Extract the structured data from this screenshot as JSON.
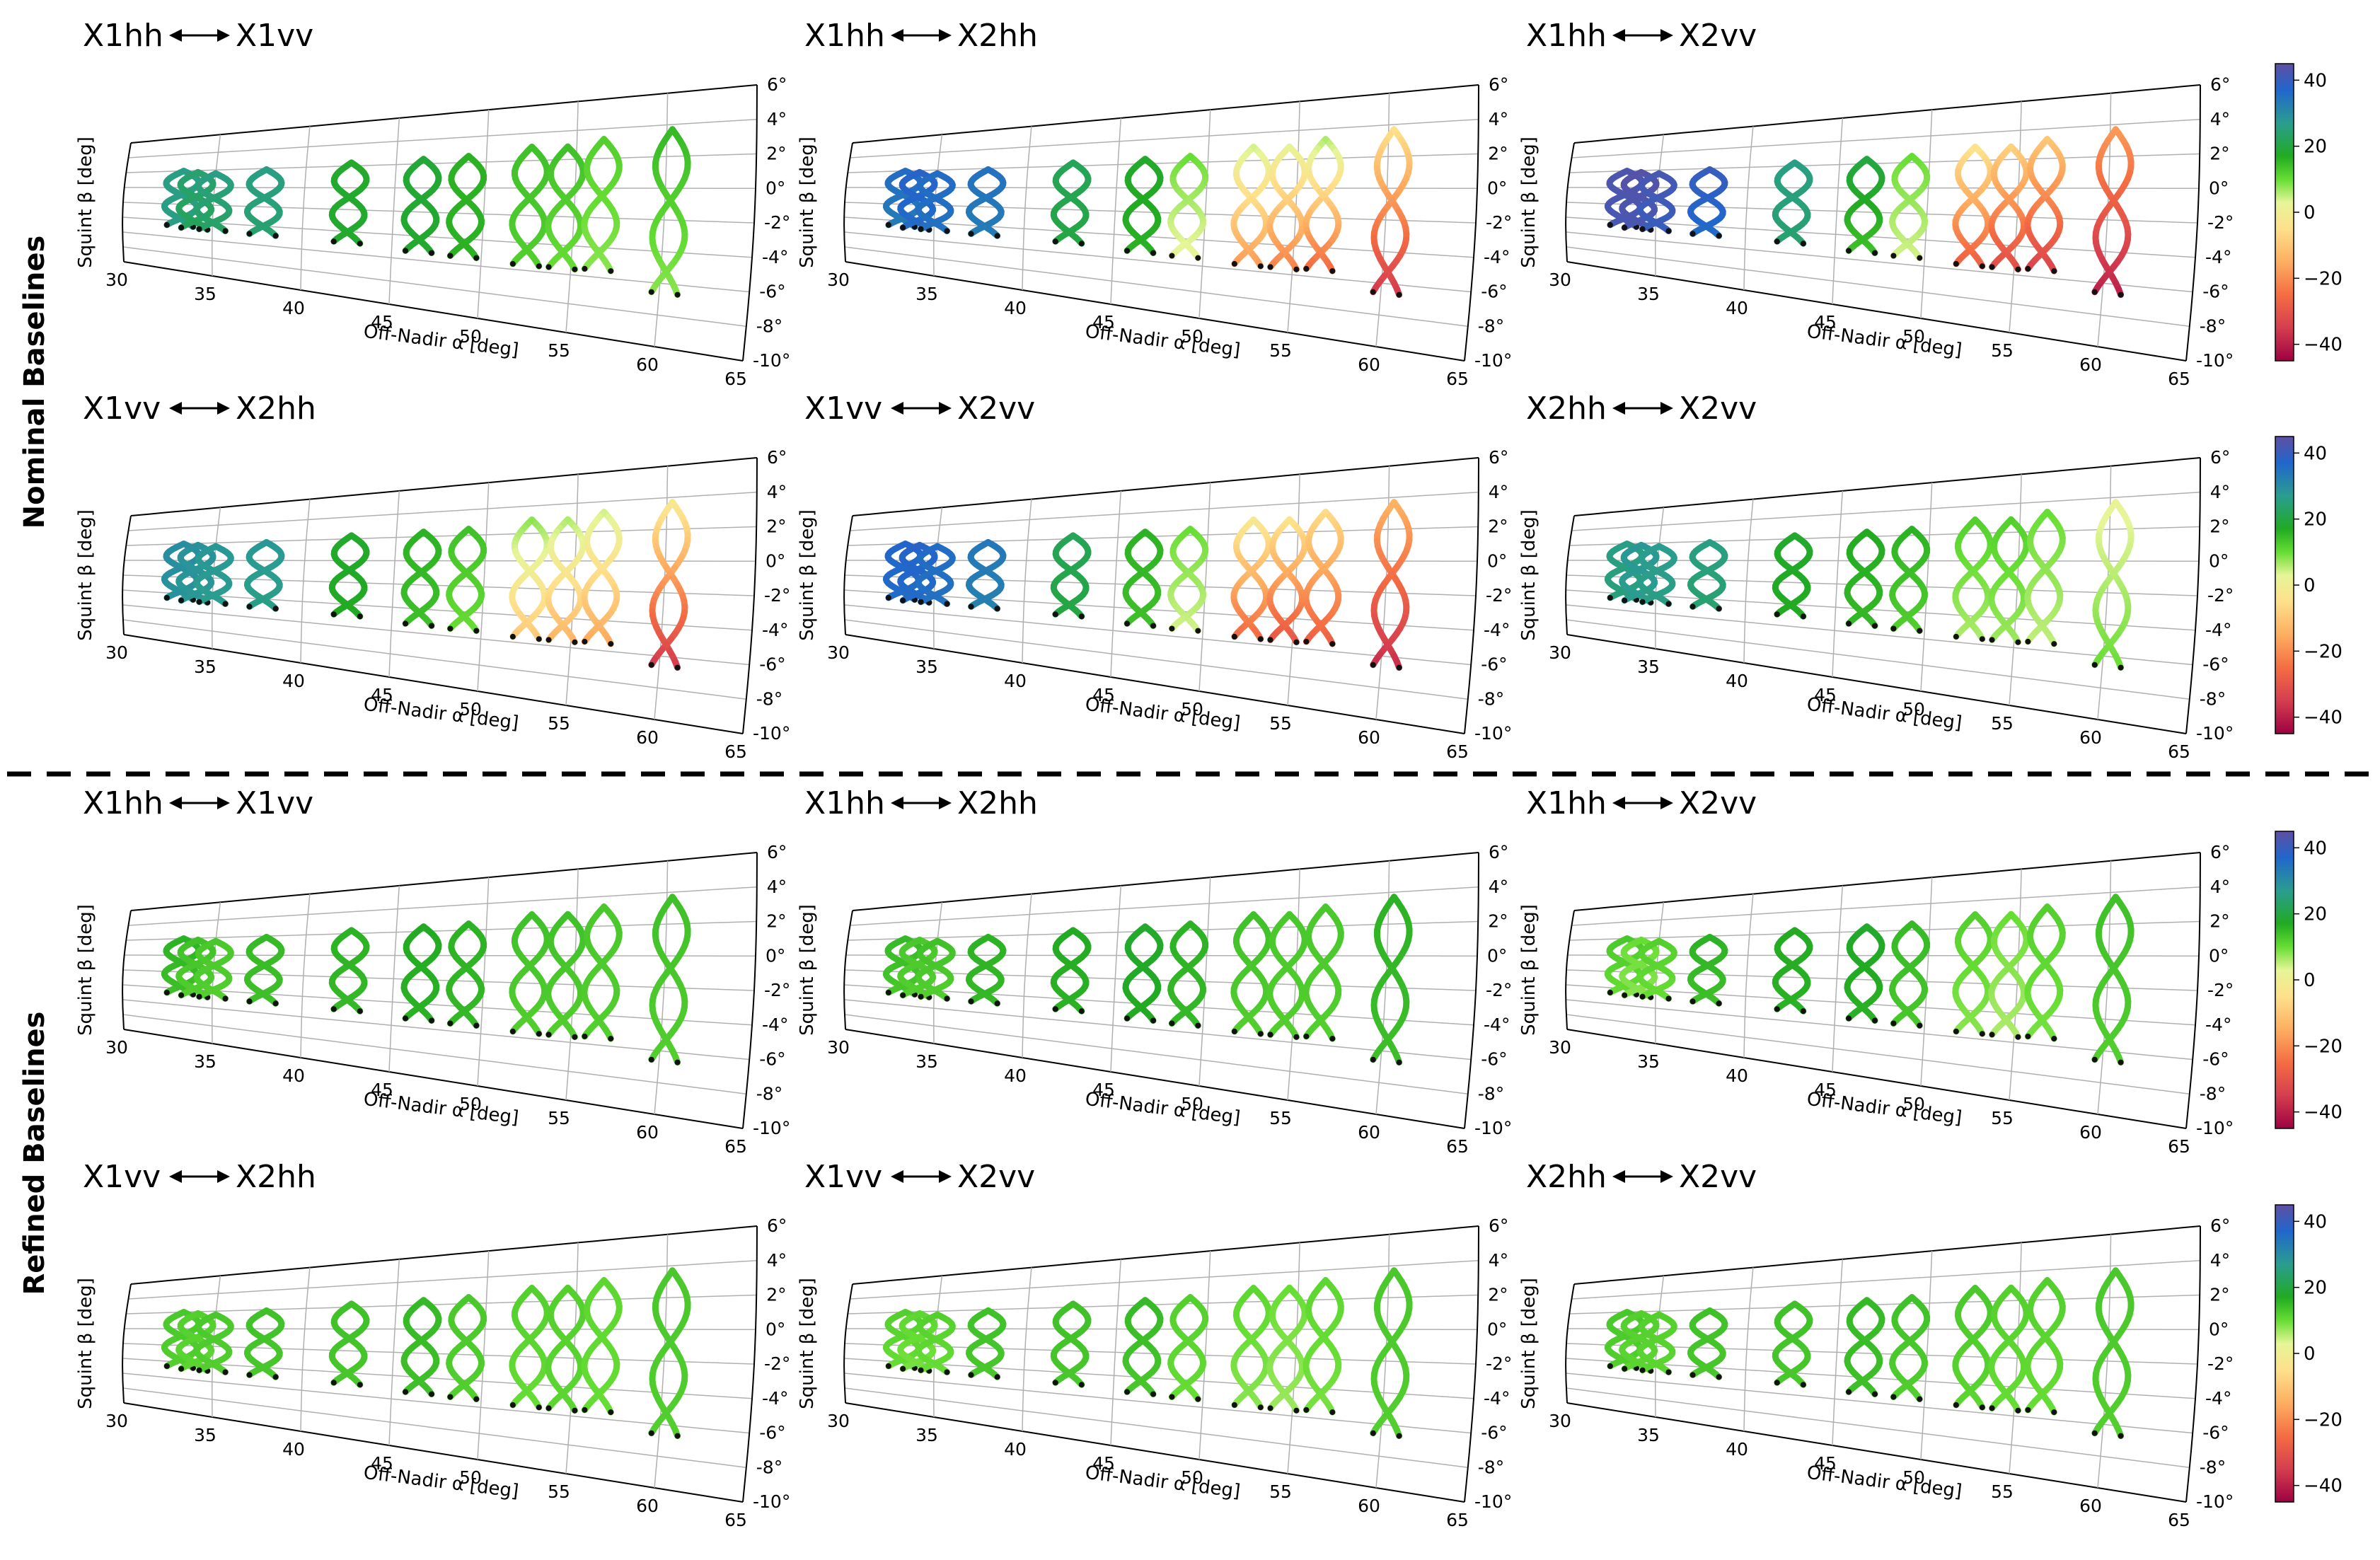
{
  "figure": {
    "row_labels": [
      "Nominal Baselines",
      "Refined Baselines"
    ],
    "divider": "dashed"
  },
  "chart_data": {
    "type": "line",
    "x_axis": {
      "label": "Off-Nadir α [deg]",
      "range": [
        30,
        65
      ],
      "ticks": [
        30,
        35,
        40,
        45,
        50,
        55,
        60,
        65
      ]
    },
    "y_axis": {
      "label": "Squint β [deg]",
      "range": [
        -10,
        6
      ],
      "ticks": [
        "6°",
        "4°",
        "2°",
        "0°",
        "-2°",
        "-4°",
        "-6°",
        "-8°",
        "-10°"
      ]
    },
    "colorbar": {
      "range": [
        -45,
        45
      ],
      "ticks": [
        40,
        20,
        0,
        -20,
        -40
      ],
      "colormap": [
        [
          -45,
          "#9e0142"
        ],
        [
          -35,
          "#d53e4f"
        ],
        [
          -25,
          "#f46d43"
        ],
        [
          -15,
          "#fdae61"
        ],
        [
          -5,
          "#fee08b"
        ],
        [
          3,
          "#e6f598"
        ],
        [
          10,
          "#66dd33"
        ],
        [
          17,
          "#22aa22"
        ],
        [
          27,
          "#2a9d8f"
        ],
        [
          37,
          "#2166cc"
        ],
        [
          45,
          "#5e4fa2"
        ]
      ]
    },
    "tracks": [
      {
        "alpha": 33.2,
        "top": 2.0,
        "bottom": -4.6
      },
      {
        "alpha": 34.0,
        "top": 1.8,
        "bottom": -4.8
      },
      {
        "alpha": 35.0,
        "top": 1.6,
        "bottom": -4.8
      },
      {
        "alpha": 37.8,
        "top": 1.9,
        "bottom": -4.9
      },
      {
        "alpha": 42.5,
        "top": 2.3,
        "bottom": -5.0
      },
      {
        "alpha": 46.5,
        "top": 2.4,
        "bottom": -5.3
      },
      {
        "alpha": 49.0,
        "top": 2.5,
        "bottom": -5.4
      },
      {
        "alpha": 52.5,
        "top": 3.0,
        "bottom": -5.6
      },
      {
        "alpha": 54.5,
        "top": 2.9,
        "bottom": -5.6
      },
      {
        "alpha": 56.5,
        "top": 3.3,
        "bottom": -5.5
      },
      {
        "alpha": 60.3,
        "top": 3.7,
        "bottom": -6.6
      }
    ],
    "panels": [
      {
        "row": 0,
        "title_left": "X1hh",
        "title_right": "X1vv",
        "colorbar": false,
        "track_values": [
          [
            26,
            26
          ],
          [
            24,
            22
          ],
          [
            26,
            23
          ],
          [
            26,
            24
          ],
          [
            18,
            18
          ],
          [
            19,
            18
          ],
          [
            16,
            16
          ],
          [
            14,
            12
          ],
          [
            14,
            10
          ],
          [
            12,
            8
          ],
          [
            15,
            8
          ]
        ]
      },
      {
        "row": 0,
        "title_left": "X1hh",
        "title_right": "X2hh",
        "colorbar": false,
        "track_values": [
          [
            36,
            33
          ],
          [
            38,
            36
          ],
          [
            36,
            35
          ],
          [
            35,
            33
          ],
          [
            22,
            20
          ],
          [
            18,
            16
          ],
          [
            10,
            2
          ],
          [
            4,
            -18
          ],
          [
            2,
            -22
          ],
          [
            6,
            -26
          ],
          [
            -5,
            -36
          ]
        ]
      },
      {
        "row": 0,
        "title_left": "X1hh",
        "title_right": "X2vv",
        "colorbar": true,
        "track_values": [
          [
            43,
            42
          ],
          [
            44,
            42
          ],
          [
            42,
            40
          ],
          [
            40,
            36
          ],
          [
            26,
            24
          ],
          [
            20,
            14
          ],
          [
            10,
            4
          ],
          [
            -4,
            -28
          ],
          [
            -8,
            -32
          ],
          [
            -10,
            -34
          ],
          [
            -18,
            -40
          ]
        ]
      },
      {
        "row": 0,
        "title_left": "X1vv",
        "title_right": "X2hh",
        "colorbar": false,
        "track_values": [
          [
            30,
            29
          ],
          [
            29,
            28
          ],
          [
            28,
            27
          ],
          [
            28,
            26
          ],
          [
            18,
            17
          ],
          [
            16,
            14
          ],
          [
            14,
            10
          ],
          [
            8,
            -10
          ],
          [
            6,
            -14
          ],
          [
            4,
            -16
          ],
          [
            -2,
            -36
          ]
        ]
      },
      {
        "row": 0,
        "title_left": "X1vv",
        "title_right": "X2vv",
        "colorbar": false,
        "track_values": [
          [
            37,
            36
          ],
          [
            38,
            36
          ],
          [
            36,
            35
          ],
          [
            34,
            32
          ],
          [
            22,
            20
          ],
          [
            16,
            14
          ],
          [
            10,
            4
          ],
          [
            -2,
            -26
          ],
          [
            -4,
            -30
          ],
          [
            -6,
            -28
          ],
          [
            -14,
            -38
          ]
        ]
      },
      {
        "row": 0,
        "title_left": "X2hh",
        "title_right": "X2vv",
        "colorbar": true,
        "track_values": [
          [
            26,
            25
          ],
          [
            28,
            27
          ],
          [
            27,
            26
          ],
          [
            26,
            24
          ],
          [
            18,
            17
          ],
          [
            17,
            15
          ],
          [
            16,
            12
          ],
          [
            12,
            6
          ],
          [
            12,
            7
          ],
          [
            10,
            5
          ],
          [
            2,
            10
          ]
        ]
      },
      {
        "row": 1,
        "title_left": "X1hh",
        "title_right": "X1vv",
        "colorbar": false,
        "track_values": [
          [
            16,
            14
          ],
          [
            14,
            12
          ],
          [
            13,
            12
          ],
          [
            15,
            14
          ],
          [
            16,
            15
          ],
          [
            17,
            16
          ],
          [
            16,
            15
          ],
          [
            14,
            12
          ],
          [
            14,
            12
          ],
          [
            13,
            12
          ],
          [
            14,
            12
          ]
        ]
      },
      {
        "row": 1,
        "title_left": "X1hh",
        "title_right": "X2hh",
        "colorbar": false,
        "track_values": [
          [
            15,
            13
          ],
          [
            13,
            12
          ],
          [
            14,
            12
          ],
          [
            16,
            15
          ],
          [
            17,
            16
          ],
          [
            18,
            17
          ],
          [
            16,
            15
          ],
          [
            14,
            12
          ],
          [
            13,
            12
          ],
          [
            13,
            12
          ],
          [
            16,
            14
          ]
        ]
      },
      {
        "row": 1,
        "title_left": "X1hh",
        "title_right": "X2vv",
        "colorbar": true,
        "track_values": [
          [
            13,
            10
          ],
          [
            10,
            8
          ],
          [
            12,
            10
          ],
          [
            16,
            14
          ],
          [
            17,
            16
          ],
          [
            18,
            16
          ],
          [
            15,
            13
          ],
          [
            12,
            8
          ],
          [
            10,
            6
          ],
          [
            12,
            9
          ],
          [
            14,
            12
          ]
        ]
      },
      {
        "row": 1,
        "title_left": "X1vv",
        "title_right": "X2hh",
        "colorbar": false,
        "track_values": [
          [
            13,
            12
          ],
          [
            12,
            11
          ],
          [
            13,
            12
          ],
          [
            14,
            13
          ],
          [
            14,
            13
          ],
          [
            15,
            14
          ],
          [
            13,
            12
          ],
          [
            12,
            10
          ],
          [
            12,
            11
          ],
          [
            11,
            10
          ],
          [
            13,
            12
          ]
        ]
      },
      {
        "row": 1,
        "title_left": "X1vv",
        "title_right": "X2vv",
        "colorbar": false,
        "track_values": [
          [
            12,
            10
          ],
          [
            11,
            9
          ],
          [
            12,
            10
          ],
          [
            14,
            13
          ],
          [
            14,
            13
          ],
          [
            15,
            13
          ],
          [
            12,
            10
          ],
          [
            11,
            8
          ],
          [
            10,
            7
          ],
          [
            11,
            9
          ],
          [
            13,
            12
          ]
        ]
      },
      {
        "row": 1,
        "title_left": "X2hh",
        "title_right": "X2vv",
        "colorbar": true,
        "track_values": [
          [
            13,
            12
          ],
          [
            12,
            11
          ],
          [
            12,
            11
          ],
          [
            14,
            13
          ],
          [
            14,
            13
          ],
          [
            15,
            14
          ],
          [
            14,
            12
          ],
          [
            13,
            11
          ],
          [
            12,
            10
          ],
          [
            12,
            10
          ],
          [
            13,
            12
          ]
        ]
      }
    ]
  }
}
